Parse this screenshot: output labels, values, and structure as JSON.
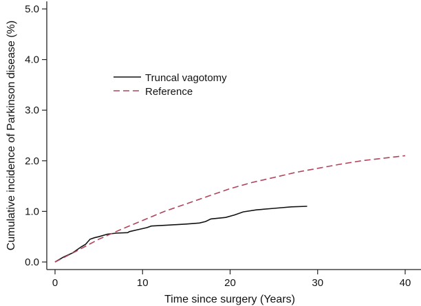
{
  "chart_data": {
    "type": "line",
    "title": "",
    "xlabel": "Time since surgery (Years)",
    "ylabel": "Cumulative incidence of Parkinson disease (%)",
    "xlim": [
      0,
      40
    ],
    "ylim": [
      0,
      5
    ],
    "xticks": [
      "0",
      "10",
      "20",
      "30",
      "40"
    ],
    "yticks": [
      "0.0",
      "1.0",
      "2.0",
      "3.0",
      "4.0",
      "5.0"
    ],
    "grid": false,
    "legend_position": "upper-left",
    "series": [
      {
        "name": "Truncal vagotomy",
        "color": "#111111",
        "style": "solid",
        "x": [
          0,
          1,
          2,
          3,
          3.5,
          4,
          4.5,
          5,
          6,
          7,
          8.3,
          8.5,
          9.5,
          10.5,
          11,
          13,
          15,
          16.5,
          17.2,
          17.8,
          19.5,
          20.5,
          21.5,
          23,
          25,
          27,
          28.8
        ],
        "y": [
          0,
          0.1,
          0.18,
          0.3,
          0.35,
          0.45,
          0.48,
          0.5,
          0.55,
          0.57,
          0.58,
          0.6,
          0.64,
          0.68,
          0.71,
          0.73,
          0.75,
          0.77,
          0.8,
          0.85,
          0.88,
          0.93,
          0.99,
          1.03,
          1.06,
          1.09,
          1.1
        ]
      },
      {
        "name": "Reference",
        "color": "#b0435a",
        "style": "dashed",
        "x": [
          0,
          2.5,
          5,
          7.5,
          10,
          12.5,
          15,
          17.5,
          20,
          22.5,
          25,
          27.5,
          30,
          32.5,
          35,
          37.5,
          40
        ],
        "y": [
          0,
          0.22,
          0.45,
          0.64,
          0.82,
          1.0,
          1.15,
          1.3,
          1.45,
          1.57,
          1.67,
          1.77,
          1.85,
          1.93,
          2.0,
          2.05,
          2.1
        ]
      }
    ]
  }
}
